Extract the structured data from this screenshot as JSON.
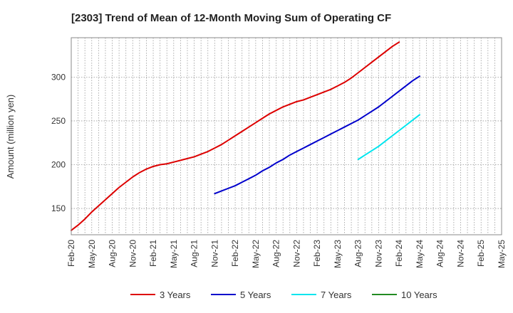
{
  "chart_data": {
    "type": "line",
    "title": "[2303]  Trend of Mean of 12-Month Moving Sum of Operating CF",
    "xlabel": "",
    "ylabel": "Amount (million yen)",
    "ylim": [
      120,
      345
    ],
    "yticks": [
      150,
      200,
      250,
      300
    ],
    "grid": true,
    "legend_position": "bottom",
    "x_tick_labels": [
      "Feb-20",
      "May-20",
      "Aug-20",
      "Nov-20",
      "Feb-21",
      "May-21",
      "Aug-21",
      "Nov-21",
      "Feb-22",
      "May-22",
      "Aug-22",
      "Nov-22",
      "Feb-23",
      "May-23",
      "Aug-23",
      "Nov-23",
      "Feb-24",
      "May-24",
      "Aug-24",
      "Nov-24",
      "Feb-25",
      "May-25"
    ],
    "series": [
      {
        "name": "3 Years",
        "color": "#dd0000",
        "start_month_index": 0,
        "values": [
          125,
          131,
          138,
          146,
          153,
          160,
          167,
          174,
          180,
          186,
          191,
          195,
          198,
          200,
          201,
          203,
          205,
          207,
          209,
          212,
          215,
          219,
          223,
          228,
          233,
          238,
          243,
          248,
          253,
          258,
          262,
          266,
          269,
          272,
          274,
          277,
          280,
          283,
          286,
          290,
          294,
          299,
          305,
          311,
          317,
          323,
          329,
          335,
          340
        ]
      },
      {
        "name": "5 Years",
        "color": "#0000cc",
        "start_month_index": 21,
        "values": [
          167,
          170,
          173,
          176,
          180,
          184,
          188,
          193,
          197,
          202,
          206,
          211,
          215,
          219,
          223,
          227,
          231,
          235,
          239,
          243,
          247,
          251,
          256,
          261,
          266,
          272,
          278,
          284,
          290,
          296,
          301
        ]
      },
      {
        "name": "7 Years",
        "color": "#00e5ee",
        "start_month_index": 42,
        "values": [
          206,
          211,
          216,
          221,
          227,
          233,
          239,
          245,
          251,
          257
        ]
      },
      {
        "name": "10 Years",
        "color": "#228b22",
        "start_month_index": 0,
        "values": []
      }
    ]
  }
}
